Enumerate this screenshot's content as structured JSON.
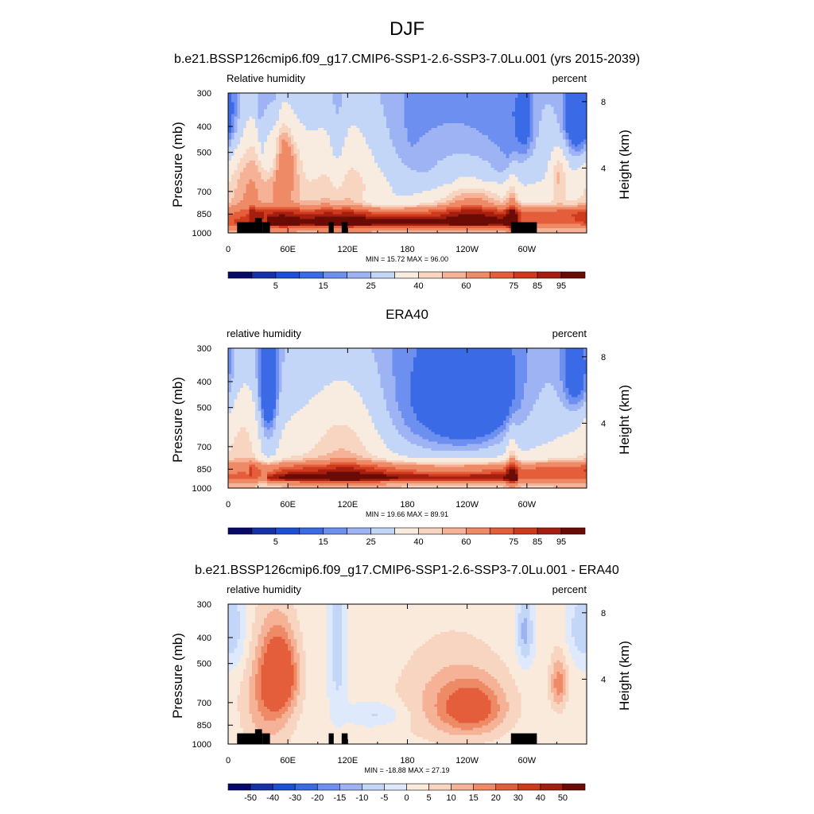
{
  "page": {
    "title": "DJF"
  },
  "colors": {
    "rh_scale": [
      "#08086b",
      "#1531a8",
      "#1d4fd6",
      "#3a6ae6",
      "#6c8ff0",
      "#9db3f3",
      "#c4d6f8",
      "#f7ecdf",
      "#f8d5c0",
      "#f5b296",
      "#ef8a66",
      "#e45e3b",
      "#cf3a1d",
      "#a51f10",
      "#6b0b05"
    ],
    "diff_scale": [
      "#08086b",
      "#1531a8",
      "#1d4fd6",
      "#3a6ae6",
      "#6c8ff0",
      "#9db3f3",
      "#c4d6f8",
      "#dee9fb",
      "#faeadc",
      "#f8d5c0",
      "#f5b296",
      "#ef8a66",
      "#e45e3b",
      "#cf3a1d",
      "#a51f10",
      "#6b0b05"
    ],
    "topography": "#000000"
  },
  "chart_data": [
    {
      "type": "heatmap",
      "title": "b.e21.BSSP126cmip6.f09_g17.CMIP6-SSP1-2.6-SSP3-7.0Lu.001 (yrs 2015-2039)",
      "left_label": "Relative humidity",
      "right_label": "percent",
      "ylabel": "Pressure (mb)",
      "ylabel_right": "Height (km)",
      "x_tick_labels": [
        "0",
        "60E",
        "120E",
        "180",
        "120W",
        "60W"
      ],
      "x_ticks_deg": [
        0,
        60,
        120,
        180,
        240,
        300
      ],
      "xlim": [
        0,
        360
      ],
      "y_tick_labels": [
        "300",
        "400",
        "500",
        "700",
        "850",
        "1000"
      ],
      "y_ticks_mb": [
        300,
        400,
        500,
        700,
        850,
        1000
      ],
      "ylim": [
        1000,
        300
      ],
      "log_pressure_axis": true,
      "right_tick_labels": [
        "8",
        "4"
      ],
      "right_ticks_km": [
        8,
        4
      ],
      "stats": "MIN =  15.72  MAX =  96.00",
      "min": 15.72,
      "max": 96.0,
      "colorbar": {
        "levels": [
          5,
          10,
          15,
          20,
          25,
          30,
          40,
          50,
          55,
          60,
          70,
          75,
          80,
          85,
          90,
          95
        ],
        "labels": [
          "5",
          "15",
          "25",
          "40",
          "60",
          "75",
          "85",
          "95"
        ],
        "label_after_box": [
          1,
          3,
          5,
          7,
          9,
          11,
          12,
          13
        ]
      },
      "topography": true
    },
    {
      "type": "heatmap",
      "title": "ERA40",
      "left_label": "relative humidity",
      "right_label": "percent",
      "ylabel": "Pressure (mb)",
      "ylabel_right": "Height (km)",
      "x_tick_labels": [
        "0",
        "60E",
        "120E",
        "180",
        "120W",
        "60W"
      ],
      "x_ticks_deg": [
        0,
        60,
        120,
        180,
        240,
        300
      ],
      "xlim": [
        0,
        360
      ],
      "y_tick_labels": [
        "300",
        "400",
        "500",
        "700",
        "850",
        "1000"
      ],
      "y_ticks_mb": [
        300,
        400,
        500,
        700,
        850,
        1000
      ],
      "ylim": [
        1000,
        300
      ],
      "log_pressure_axis": true,
      "right_tick_labels": [
        "8",
        "4"
      ],
      "right_ticks_km": [
        8,
        4
      ],
      "stats": "MIN =  19.66  MAX =  89.91",
      "min": 19.66,
      "max": 89.91,
      "colorbar": {
        "levels": [
          5,
          10,
          15,
          20,
          25,
          30,
          40,
          50,
          55,
          60,
          70,
          75,
          80,
          85,
          90,
          95
        ],
        "labels": [
          "5",
          "15",
          "25",
          "40",
          "60",
          "75",
          "85",
          "95"
        ],
        "label_after_box": [
          1,
          3,
          5,
          7,
          9,
          11,
          12,
          13
        ]
      },
      "topography": false
    },
    {
      "type": "heatmap",
      "title": "b.e21.BSSP126cmip6.f09_g17.CMIP6-SSP1-2.6-SSP3-7.0Lu.001 - ERA40",
      "left_label": "relative humidity",
      "right_label": "percent",
      "ylabel": "Pressure (mb)",
      "ylabel_right": "Height (km)",
      "x_tick_labels": [
        "0",
        "60E",
        "120E",
        "180",
        "120W",
        "60W"
      ],
      "x_ticks_deg": [
        0,
        60,
        120,
        180,
        240,
        300
      ],
      "xlim": [
        0,
        360
      ],
      "y_tick_labels": [
        "300",
        "400",
        "500",
        "700",
        "850",
        "1000"
      ],
      "y_ticks_mb": [
        300,
        400,
        500,
        700,
        850,
        1000
      ],
      "ylim": [
        1000,
        300
      ],
      "log_pressure_axis": true,
      "right_tick_labels": [
        "8",
        "4"
      ],
      "right_ticks_km": [
        8,
        4
      ],
      "stats": "MIN = -18.88  MAX =  27.19",
      "min": -18.88,
      "max": 27.19,
      "colorbar": {
        "labels": [
          "-50",
          "-40",
          "-30",
          "-20",
          "-15",
          "-10",
          "-5",
          "0",
          "5",
          "10",
          "15",
          "20",
          "30",
          "40",
          "50"
        ],
        "label_after_box": [
          0,
          1,
          2,
          3,
          4,
          5,
          6,
          7,
          8,
          9,
          10,
          11,
          12,
          13,
          14
        ]
      },
      "topography": true
    }
  ]
}
